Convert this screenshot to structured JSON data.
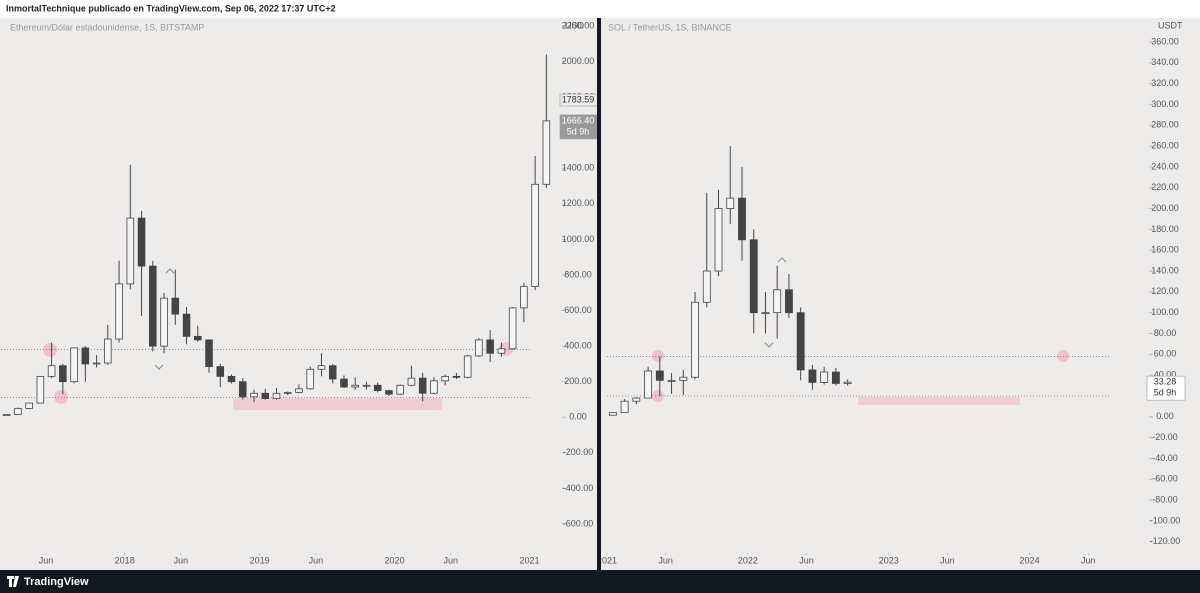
{
  "header": "InmortalTechnique publicado en TradingView.com, Sep 06, 2022 17:37 UTC+2",
  "footer": "TradingView",
  "chart_data": [
    {
      "type": "candlestick",
      "title": "Ethereum/Dólar estadounidense, 1S, BITSTAMP",
      "currency": "USD",
      "x": [
        "2017-02",
        "2017-03",
        "2017-04",
        "2017-05",
        "2017-06",
        "2017-07",
        "2017-08",
        "2017-09",
        "2017-10",
        "2017-11",
        "2017-12",
        "2018-01",
        "2018-02",
        "2018-03",
        "2018-04",
        "2018-05",
        "2018-06",
        "2018-07",
        "2018-08",
        "2018-09",
        "2018-10",
        "2018-11",
        "2018-12",
        "2019-01",
        "2019-02",
        "2019-03",
        "2019-04",
        "2019-05",
        "2019-06",
        "2019-07",
        "2019-08",
        "2019-09",
        "2019-10",
        "2019-11",
        "2019-12",
        "2020-01",
        "2020-02",
        "2020-03",
        "2020-04",
        "2020-05",
        "2020-06",
        "2020-07",
        "2020-08",
        "2020-09",
        "2020-10",
        "2020-11",
        "2020-12",
        "2021-01",
        "2021-02"
      ],
      "open": [
        11,
        16,
        50,
        80,
        230,
        290,
        200,
        390,
        300,
        305,
        440,
        750,
        1120,
        850,
        400,
        670,
        580,
        455,
        435,
        285,
        230,
        200,
        115,
        135,
        105,
        135,
        140,
        160,
        270,
        290,
        215,
        170,
        180,
        180,
        150,
        130,
        180,
        220,
        135,
        205,
        230,
        225,
        345,
        435,
        360,
        385,
        615,
        735,
        1310
      ],
      "high": [
        16,
        55,
        80,
        230,
        420,
        300,
        390,
        400,
        350,
        520,
        880,
        1420,
        1160,
        880,
        700,
        830,
        620,
        515,
        435,
        300,
        240,
        220,
        155,
        160,
        165,
        145,
        185,
        285,
        360,
        300,
        235,
        225,
        200,
        195,
        155,
        185,
        290,
        250,
        225,
        240,
        250,
        350,
        445,
        490,
        420,
        620,
        755,
        1470,
        2040
      ],
      "low": [
        10,
        16,
        45,
        80,
        220,
        130,
        190,
        200,
        280,
        295,
        420,
        720,
        570,
        370,
        360,
        520,
        410,
        425,
        250,
        170,
        190,
        100,
        85,
        100,
        100,
        125,
        135,
        155,
        230,
        190,
        165,
        155,
        155,
        140,
        120,
        125,
        175,
        90,
        130,
        180,
        215,
        220,
        340,
        310,
        340,
        380,
        535,
        715,
        1290
      ],
      "close": [
        16,
        50,
        80,
        230,
        290,
        200,
        390,
        300,
        305,
        440,
        750,
        1120,
        850,
        400,
        670,
        580,
        455,
        435,
        285,
        230,
        200,
        115,
        135,
        105,
        135,
        140,
        160,
        270,
        290,
        215,
        170,
        180,
        180,
        150,
        130,
        180,
        220,
        135,
        205,
        230,
        225,
        345,
        435,
        360,
        385,
        615,
        735,
        1310,
        1666.4
      ],
      "xlim": [
        "2017-02",
        "2021-03"
      ],
      "xticks": [
        {
          "value": "2017-06",
          "label": "Jun"
        },
        {
          "value": "2018-01",
          "label": "2018"
        },
        {
          "value": "2018-06",
          "label": "Jun"
        },
        {
          "value": "2019-01",
          "label": "2019"
        },
        {
          "value": "2019-06",
          "label": "Jun"
        },
        {
          "value": "2020-01",
          "label": "2020"
        },
        {
          "value": "2020-06",
          "label": "Jun"
        },
        {
          "value": "2021-01",
          "label": "2021"
        }
      ],
      "ylim": [
        -735,
        2245
      ],
      "yticks": [
        {
          "value": 2200,
          "label": "2200.00"
        },
        {
          "value": 2000,
          "label": "2000.00"
        },
        {
          "value": 1800,
          "label": "1800.00"
        },
        {
          "value": 1600,
          "label": "1600.00"
        },
        {
          "value": 1400,
          "label": "1400.00"
        },
        {
          "value": 1200,
          "label": "1200.00"
        },
        {
          "value": 1000,
          "label": "1000.00"
        },
        {
          "value": 800,
          "label": "800.00"
        },
        {
          "value": 600,
          "label": "600.00"
        },
        {
          "value": 400,
          "label": "400.00"
        },
        {
          "value": 200,
          "label": "200.00"
        },
        {
          "value": 0,
          "label": "0.00"
        },
        {
          "value": -200,
          "label": "-200.00"
        },
        {
          "value": -400,
          "label": "-400.00"
        },
        {
          "value": -600,
          "label": "-600.00"
        }
      ],
      "hlines": [
        382,
        112
      ],
      "price_labels": [
        {
          "value": 1783.59,
          "label": "1783.59"
        },
        {
          "value": 1666.4,
          "label": "1666.40"
        }
      ],
      "countdown": "5d 9h",
      "up_color": "#f4f4f4",
      "down_color": "#444444",
      "wick_color": "#444444"
    },
    {
      "type": "candlestick",
      "title": "SOL / TetherUS, 1S, BINANCE",
      "currency": "USDT",
      "x": [
        "2021-01",
        "2021-02",
        "2021-03",
        "2021-04",
        "2021-05",
        "2021-06",
        "2021-07",
        "2021-08",
        "2021-09",
        "2021-10",
        "2021-11",
        "2021-12",
        "2022-01",
        "2022-02",
        "2022-03",
        "2022-04",
        "2022-05",
        "2022-06",
        "2022-07",
        "2022-08",
        "2022-09"
      ],
      "open": [
        1.5,
        4,
        15,
        18,
        44,
        35,
        35,
        38,
        110,
        140,
        200,
        210,
        170,
        100,
        100,
        122,
        100,
        45,
        33,
        43,
        32
      ],
      "high": [
        4,
        17,
        19,
        48,
        58,
        42,
        45,
        120,
        215,
        218,
        260,
        240,
        180,
        120,
        145,
        137,
        105,
        50,
        48,
        47,
        36
      ],
      "low": [
        1.5,
        4,
        12,
        18,
        20,
        22,
        21,
        36,
        105,
        135,
        185,
        150,
        80,
        80,
        75,
        95,
        35,
        26,
        31,
        30,
        30
      ],
      "close": [
        4,
        15,
        18,
        44,
        35,
        35,
        38,
        110,
        140,
        200,
        210,
        170,
        100,
        100,
        122,
        100,
        45,
        33,
        43,
        32,
        33.28
      ],
      "xlim": [
        "2021-01",
        "2024-07"
      ],
      "xticks": [
        {
          "value": "2021-01",
          "label": "2021"
        },
        {
          "value": "2021-06",
          "label": "Jun"
        },
        {
          "value": "2022-01",
          "label": "2022"
        },
        {
          "value": "2022-06",
          "label": "Jun"
        },
        {
          "value": "2023-01",
          "label": "2023"
        },
        {
          "value": "2023-06",
          "label": "Jun"
        },
        {
          "value": "2024-01",
          "label": "2024"
        },
        {
          "value": "2024-06",
          "label": "Jun"
        }
      ],
      "ylim": [
        -126,
        383
      ],
      "yticks": [
        {
          "value": 360,
          "label": "360.00"
        },
        {
          "value": 340,
          "label": "340.00"
        },
        {
          "value": 320,
          "label": "320.00"
        },
        {
          "value": 300,
          "label": "300.00"
        },
        {
          "value": 280,
          "label": "280.00"
        },
        {
          "value": 260,
          "label": "260.00"
        },
        {
          "value": 240,
          "label": "240.00"
        },
        {
          "value": 220,
          "label": "220.00"
        },
        {
          "value": 200,
          "label": "200.00"
        },
        {
          "value": 180,
          "label": "180.00"
        },
        {
          "value": 160,
          "label": "160.00"
        },
        {
          "value": 140,
          "label": "140.00"
        },
        {
          "value": 120,
          "label": "120.00"
        },
        {
          "value": 100,
          "label": "100.00"
        },
        {
          "value": 80,
          "label": "80.00"
        },
        {
          "value": 60,
          "label": "60.00"
        },
        {
          "value": 40,
          "label": "40.00"
        },
        {
          "value": 20,
          "label": "20.00"
        },
        {
          "value": 0,
          "label": "0.00"
        },
        {
          "value": -20,
          "label": "-20.00"
        },
        {
          "value": -40,
          "label": "-40.00"
        },
        {
          "value": -60,
          "label": "-60.00"
        },
        {
          "value": -80,
          "label": "-80.00"
        },
        {
          "value": -100,
          "label": "-100.00"
        },
        {
          "value": -120,
          "label": "-120.00"
        }
      ],
      "hlines": [
        58,
        20
      ],
      "price_labels": [
        {
          "value": 33.28,
          "label": "33.28"
        }
      ],
      "countdown": "5d 9h",
      "up_color": "#f4f4f4",
      "down_color": "#444444",
      "wick_color": "#444444"
    }
  ]
}
